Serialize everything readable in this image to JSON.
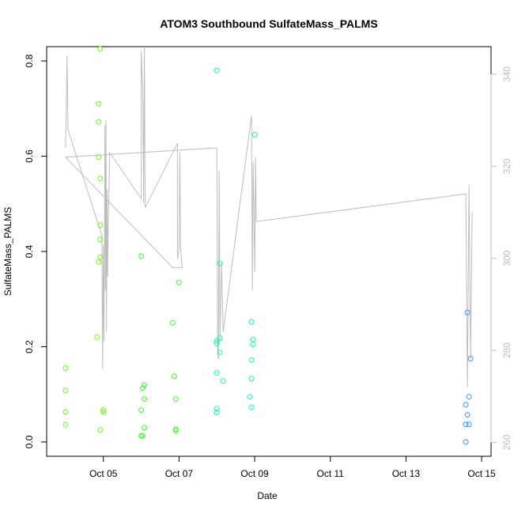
{
  "chart_data": {
    "type": "scatter",
    "title": "ATOM3 Southbound SulfateMass_PALMS",
    "xlabel": "Date",
    "ylabel": "SulfateMass_PALMS",
    "xlim": [
      "2017-10-03T12:00",
      "2017-10-15T06:00"
    ],
    "ylim": [
      -0.03,
      0.83
    ],
    "y2lim": [
      257,
      346
    ],
    "grid": false,
    "legend": "none",
    "x_ticks": [
      {
        "label": "Oct 05",
        "value": "2017-10-05"
      },
      {
        "label": "Oct 07",
        "value": "2017-10-07"
      },
      {
        "label": "Oct 09",
        "value": "2017-10-09"
      },
      {
        "label": "Oct 11",
        "value": "2017-10-11"
      },
      {
        "label": "Oct 13",
        "value": "2017-10-13"
      },
      {
        "label": "Oct 15",
        "value": "2017-10-15"
      }
    ],
    "y_ticks": [
      "0.0",
      "0.2",
      "0.4",
      "0.6",
      "0.8"
    ],
    "y2_ticks": [
      "260",
      "280",
      "300",
      "320",
      "340"
    ],
    "points": [
      {
        "x": "2017-10-04T00:00",
        "y": 0.155,
        "color": "#66ff00"
      },
      {
        "x": "2017-10-04T00:00",
        "y": 0.108,
        "color": "#66ff00"
      },
      {
        "x": "2017-10-04T00:00",
        "y": 0.063,
        "color": "#66ff00"
      },
      {
        "x": "2017-10-04T00:00",
        "y": 0.036,
        "color": "#66ff00"
      },
      {
        "x": "2017-10-04T20:00",
        "y": 0.22,
        "color": "#66ff00"
      },
      {
        "x": "2017-10-04T21:00",
        "y": 0.71,
        "color": "#66ff00"
      },
      {
        "x": "2017-10-04T21:00",
        "y": 0.672,
        "color": "#66ff00"
      },
      {
        "x": "2017-10-04T21:00",
        "y": 0.598,
        "color": "#66ff00"
      },
      {
        "x": "2017-10-04T21:00",
        "y": 0.378,
        "color": "#66ff00"
      },
      {
        "x": "2017-10-04T22:00",
        "y": 0.825,
        "color": "#66ff00"
      },
      {
        "x": "2017-10-04T22:00",
        "y": 0.553,
        "color": "#66ff00"
      },
      {
        "x": "2017-10-04T22:00",
        "y": 0.455,
        "color": "#66ff00"
      },
      {
        "x": "2017-10-04T22:00",
        "y": 0.425,
        "color": "#66ff00"
      },
      {
        "x": "2017-10-04T22:00",
        "y": 0.388,
        "color": "#66ff00"
      },
      {
        "x": "2017-10-04T22:00",
        "y": 0.025,
        "color": "#66ff00"
      },
      {
        "x": "2017-10-05T00:00",
        "y": 0.067,
        "color": "#66ff00"
      },
      {
        "x": "2017-10-05T00:00",
        "y": 0.063,
        "color": "#66ff00"
      },
      {
        "x": "2017-10-06T00:00",
        "y": 0.39,
        "color": "#33ff22"
      },
      {
        "x": "2017-10-06T00:00",
        "y": 0.067,
        "color": "#33ff22"
      },
      {
        "x": "2017-10-06T00:00",
        "y": 0.013,
        "color": "#33ff22"
      },
      {
        "x": "2017-10-06T01:00",
        "y": 0.113,
        "color": "#33ff22"
      },
      {
        "x": "2017-10-06T01:00",
        "y": 0.013,
        "color": "#33ff22"
      },
      {
        "x": "2017-10-06T02:00",
        "y": 0.12,
        "color": "#33ff22"
      },
      {
        "x": "2017-10-06T02:00",
        "y": 0.09,
        "color": "#33ff22"
      },
      {
        "x": "2017-10-06T02:00",
        "y": 0.03,
        "color": "#33ff22"
      },
      {
        "x": "2017-10-06T20:00",
        "y": 0.25,
        "color": "#33ff22"
      },
      {
        "x": "2017-10-06T21:00",
        "y": 0.138,
        "color": "#33ff22"
      },
      {
        "x": "2017-10-06T22:00",
        "y": 0.09,
        "color": "#33ff22"
      },
      {
        "x": "2017-10-06T22:00",
        "y": 0.027,
        "color": "#33ff22"
      },
      {
        "x": "2017-10-06T22:00",
        "y": 0.024,
        "color": "#33ff22"
      },
      {
        "x": "2017-10-07T00:00",
        "y": 0.335,
        "color": "#33ff22"
      },
      {
        "x": "2017-10-08T00:00",
        "y": 0.78,
        "color": "#00ffaa"
      },
      {
        "x": "2017-10-08T00:00",
        "y": 0.212,
        "color": "#00ffaa"
      },
      {
        "x": "2017-10-08T00:00",
        "y": 0.207,
        "color": "#00ffaa"
      },
      {
        "x": "2017-10-08T00:00",
        "y": 0.145,
        "color": "#00ffaa"
      },
      {
        "x": "2017-10-08T00:00",
        "y": 0.07,
        "color": "#00ffaa"
      },
      {
        "x": "2017-10-08T00:00",
        "y": 0.062,
        "color": "#00ffaa"
      },
      {
        "x": "2017-10-08T02:00",
        "y": 0.375,
        "color": "#00ffaa"
      },
      {
        "x": "2017-10-08T02:00",
        "y": 0.218,
        "color": "#00ffaa"
      },
      {
        "x": "2017-10-08T02:00",
        "y": 0.188,
        "color": "#00ffaa"
      },
      {
        "x": "2017-10-08T04:00",
        "y": 0.128,
        "color": "#00ffaa"
      },
      {
        "x": "2017-10-08T22:00",
        "y": 0.252,
        "color": "#00ffaa"
      },
      {
        "x": "2017-10-08T22:00",
        "y": 0.172,
        "color": "#00ffaa"
      },
      {
        "x": "2017-10-08T22:00",
        "y": 0.133,
        "color": "#00ffaa"
      },
      {
        "x": "2017-10-08T21:00",
        "y": 0.095,
        "color": "#00ffaa"
      },
      {
        "x": "2017-10-08T22:00",
        "y": 0.073,
        "color": "#00ffaa"
      },
      {
        "x": "2017-10-09T00:00",
        "y": 0.645,
        "color": "#00ffaa"
      },
      {
        "x": "2017-10-08T23:00",
        "y": 0.215,
        "color": "#00ffaa"
      },
      {
        "x": "2017-10-08T23:00",
        "y": 0.205,
        "color": "#00ffaa"
      },
      {
        "x": "2017-10-14T14:00",
        "y": 0.078,
        "color": "#3399ff"
      },
      {
        "x": "2017-10-14T14:00",
        "y": 0.0,
        "color": "#3399ff"
      },
      {
        "x": "2017-10-14T14:00",
        "y": 0.037,
        "color": "#3399ff"
      },
      {
        "x": "2017-10-14T15:00",
        "y": 0.272,
        "color": "#3399ff"
      },
      {
        "x": "2017-10-14T15:00",
        "y": 0.057,
        "color": "#3399ff"
      },
      {
        "x": "2017-10-14T16:00",
        "y": 0.095,
        "color": "#3399ff"
      },
      {
        "x": "2017-10-14T16:00",
        "y": 0.037,
        "color": "#3399ff"
      },
      {
        "x": "2017-10-14T17:00",
        "y": 0.175,
        "color": "#3399ff"
      }
    ],
    "line_series": {
      "axis": "right",
      "color": "#bdbdbd",
      "points": [
        [
          "2017-10-04T00:00",
          324
        ],
        [
          "2017-10-04T01:00",
          344
        ],
        [
          "2017-10-04T01:30",
          328
        ],
        [
          "2017-10-04T23:00",
          305
        ],
        [
          "2017-10-04T23:30",
          276
        ],
        [
          "2017-10-05T00:00",
          303
        ],
        [
          "2017-10-05T00:20",
          282
        ],
        [
          "2017-10-05T00:40",
          300
        ],
        [
          "2017-10-05T01:00",
          329
        ],
        [
          "2017-10-05T01:20",
          293
        ],
        [
          "2017-10-05T01:40",
          330
        ],
        [
          "2017-10-05T02:00",
          284
        ],
        [
          "2017-10-05T02:20",
          315
        ],
        [
          "2017-10-05T02:40",
          296
        ],
        [
          "2017-10-05T03:00",
          305
        ],
        [
          "2017-10-05T04:00",
          323
        ],
        [
          "2017-10-06T00:00",
          313
        ],
        [
          "2017-10-06T00:00",
          345
        ],
        [
          "2017-10-06T01:00",
          336
        ],
        [
          "2017-10-06T01:30",
          312
        ],
        [
          "2017-10-06T02:00",
          346
        ],
        [
          "2017-10-06T02:30",
          311
        ],
        [
          "2017-10-06T23:00",
          325
        ],
        [
          "2017-10-06T23:00",
          300
        ],
        [
          "2017-10-07T00:00",
          302
        ],
        [
          "2017-10-07T00:30",
          323
        ],
        [
          "2017-10-07T01:00",
          302
        ],
        [
          "2017-10-07T02:00",
          298
        ],
        [
          "2017-10-06T20:00",
          298
        ],
        [
          "2017-10-04T00:00",
          322
        ],
        [
          "2017-10-08T00:00",
          324
        ],
        [
          "2017-10-08T00:30",
          280
        ],
        [
          "2017-10-08T01:00",
          278
        ],
        [
          "2017-10-08T01:30",
          319
        ],
        [
          "2017-10-08T02:00",
          282
        ],
        [
          "2017-10-08T03:00",
          299
        ],
        [
          "2017-10-08T04:00",
          284
        ],
        [
          "2017-10-08T22:00",
          331
        ],
        [
          "2017-10-08T22:30",
          293
        ],
        [
          "2017-10-08T23:00",
          321
        ],
        [
          "2017-10-09T00:00",
          297
        ],
        [
          "2017-10-09T00:30",
          322
        ],
        [
          "2017-10-09T01:00",
          308
        ],
        [
          "2017-10-14T14:00",
          314
        ],
        [
          "2017-10-14T15:00",
          272
        ],
        [
          "2017-10-14T16:00",
          316
        ],
        [
          "2017-10-14T17:00",
          278
        ],
        [
          "2017-10-14T18:00",
          310
        ]
      ]
    }
  }
}
